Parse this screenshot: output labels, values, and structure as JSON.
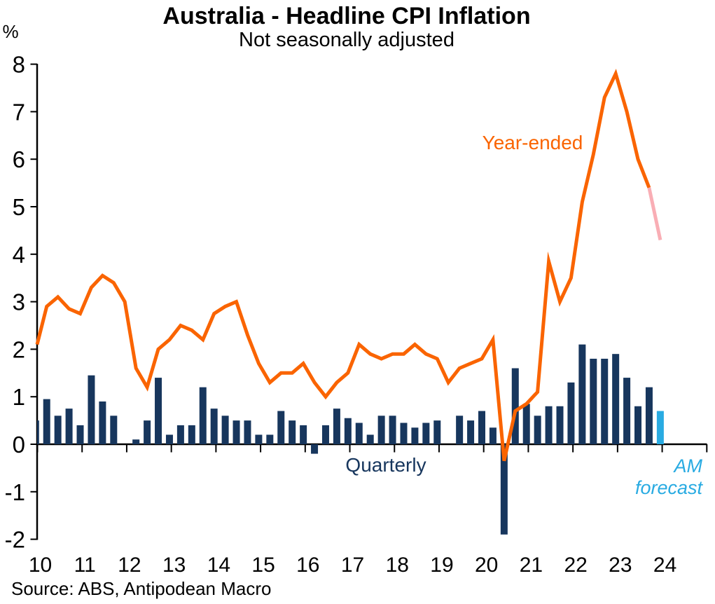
{
  "chart_data": {
    "type": "bar+line",
    "title": "Australia - Headline CPI Inflation",
    "subtitle": "Not seasonally adjusted",
    "y_axis_unit": "%",
    "ylim": [
      -2,
      8
    ],
    "y_tick_labels": [
      "8",
      "7",
      "6",
      "5",
      "4",
      "3",
      "2",
      "1",
      "0",
      "-1",
      "-2"
    ],
    "x_tick_labels": [
      "10",
      "11",
      "12",
      "13",
      "14",
      "15",
      "16",
      "17",
      "18",
      "19",
      "20",
      "21",
      "22",
      "23",
      "24"
    ],
    "start_quarter": "2009Q4",
    "frequency": "quarterly",
    "grid": "off",
    "series": [
      {
        "name": "Quarterly",
        "type": "bar",
        "color": "#17365D",
        "values": [
          0.5,
          0.95,
          0.6,
          0.75,
          0.4,
          1.45,
          0.9,
          0.6,
          0,
          0.1,
          0.5,
          1.4,
          0.2,
          0.4,
          0.4,
          1.2,
          0.75,
          0.6,
          0.5,
          0.5,
          0.2,
          0.2,
          0.7,
          0.5,
          0.4,
          -0.2,
          0.4,
          0.75,
          0.55,
          0.45,
          0.2,
          0.6,
          0.6,
          0.45,
          0.35,
          0.45,
          0.5,
          0,
          0.6,
          0.5,
          0.7,
          0.35,
          -1.9,
          1.6,
          0.85,
          0.6,
          0.8,
          0.8,
          1.3,
          2.1,
          1.8,
          1.8,
          1.9,
          1.4,
          0.8,
          1.2,
          0.7
        ]
      },
      {
        "name": "Year-ended",
        "type": "line",
        "color": "#FA6400",
        "values": [
          2.1,
          2.9,
          3.1,
          2.85,
          2.75,
          3.3,
          3.55,
          3.4,
          3.0,
          1.6,
          1.2,
          2.0,
          2.2,
          2.5,
          2.4,
          2.2,
          2.75,
          2.9,
          3.0,
          2.3,
          1.7,
          1.3,
          1.5,
          1.5,
          1.7,
          1.3,
          1.0,
          1.3,
          1.5,
          2.1,
          1.9,
          1.8,
          1.9,
          1.9,
          2.1,
          1.9,
          1.8,
          1.3,
          1.6,
          1.7,
          1.8,
          2.2,
          -0.35,
          0.7,
          0.85,
          1.1,
          3.85,
          3.0,
          3.5,
          5.1,
          6.1,
          7.3,
          7.8,
          7.0,
          6.0,
          5.4,
          4.3
        ]
      }
    ],
    "forecast": {
      "label_line1": "AM",
      "label_line2": "forecast",
      "points": 1,
      "bar_color": "#29ABE2",
      "line_color": "#F9AEB5"
    },
    "source": "Source: ABS, Antipodean Macro"
  }
}
